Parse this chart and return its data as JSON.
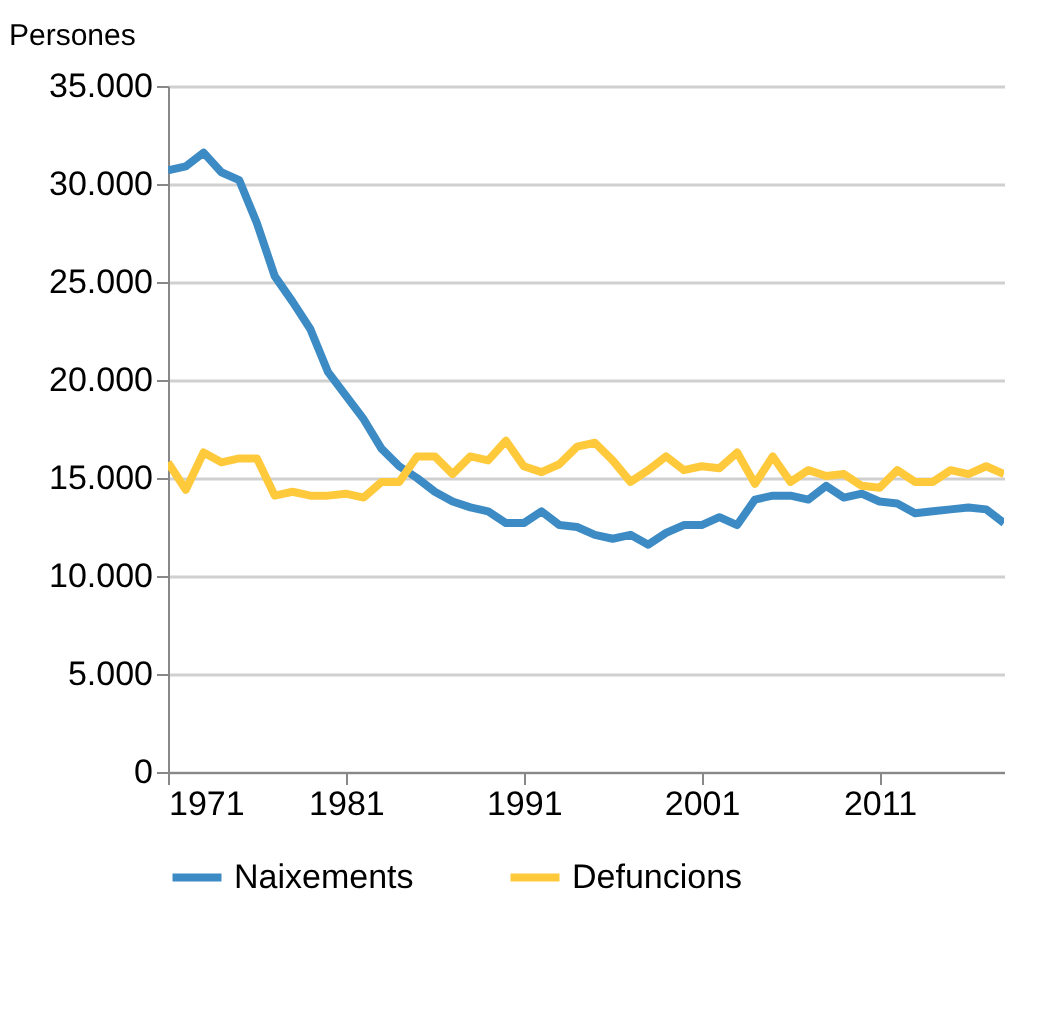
{
  "chart_data": {
    "type": "line",
    "ylabel": "Persones",
    "x": [
      1971,
      1972,
      1973,
      1974,
      1975,
      1976,
      1977,
      1978,
      1979,
      1980,
      1981,
      1982,
      1983,
      1984,
      1985,
      1986,
      1987,
      1988,
      1989,
      1990,
      1991,
      1992,
      1993,
      1994,
      1995,
      1996,
      1997,
      1998,
      1999,
      2000,
      2001,
      2002,
      2003,
      2004,
      2005,
      2006,
      2007,
      2008,
      2009,
      2010,
      2011,
      2012,
      2013,
      2014,
      2015,
      2016,
      2017,
      2018
    ],
    "series": [
      {
        "name": "Naixements",
        "color": "#3d8bc4",
        "values": [
          30700,
          30900,
          31600,
          30600,
          30200,
          28000,
          25300,
          24000,
          22600,
          20400,
          19200,
          18000,
          16500,
          15600,
          15000,
          14300,
          13800,
          13500,
          13300,
          12700,
          12700,
          13300,
          12600,
          12500,
          12100,
          11900,
          12100,
          11600,
          12200,
          12600,
          12600,
          13000,
          12600,
          13900,
          14100,
          14100,
          13900,
          14600,
          14000,
          14200,
          13800,
          13700,
          13200,
          13300,
          13400,
          13500,
          13400,
          12700
        ]
      },
      {
        "name": "Defuncions",
        "color": "#ffc93c",
        "values": [
          15800,
          14400,
          16300,
          15800,
          16000,
          16000,
          14100,
          14300,
          14100,
          14100,
          14200,
          14000,
          14800,
          14800,
          16100,
          16100,
          15200,
          16100,
          15900,
          16900,
          15600,
          15300,
          15700,
          16600,
          16800,
          15900,
          14800,
          15400,
          16100,
          15400,
          15600,
          15500,
          16300,
          14700,
          16100,
          14800,
          15400,
          15100,
          15200,
          14600,
          14500,
          15400,
          14800,
          14800,
          15400,
          15200,
          15600,
          15200
        ]
      }
    ],
    "xlim": [
      1971,
      2018
    ],
    "xticks": [
      1971,
      1981,
      1991,
      2001,
      2011
    ],
    "ylim": [
      0,
      35000
    ],
    "yticks": [
      0,
      {
        "value": 5000,
        "label": "5.000"
      },
      {
        "value": 10000,
        "label": "10.000"
      },
      {
        "value": 15000,
        "label": "15.000"
      },
      {
        "value": 20000,
        "label": "20.000"
      },
      {
        "value": 25000,
        "label": "25.000"
      },
      {
        "value": 30000,
        "label": "30.000"
      },
      {
        "value": 35000,
        "label": "35.000"
      }
    ],
    "grid": "y",
    "legend": "bottom",
    "line_style": "solid"
  }
}
